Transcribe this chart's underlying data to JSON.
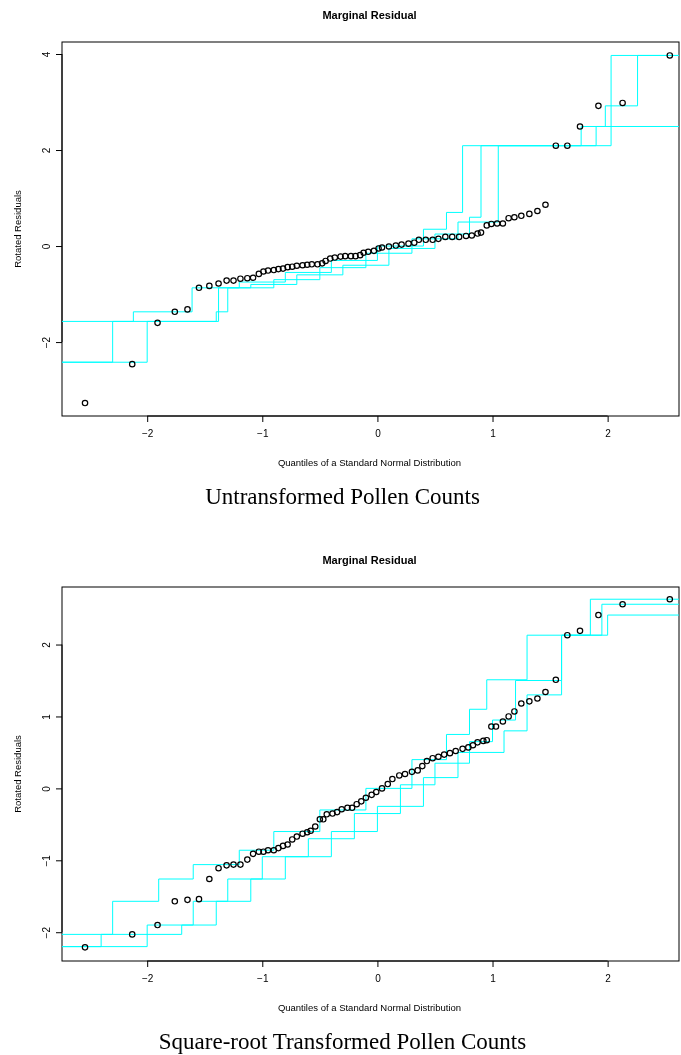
{
  "chart_data": [
    {
      "type": "scatter",
      "title": "Marginal Residual",
      "xlabel": "Quantiles of a Standard Normal Distribution",
      "ylabel": "Rotated Residuals",
      "annotations": [
        "Untransformed Pollen Counts"
      ],
      "xlim": [
        -2.74,
        2.62
      ],
      "xticks": [
        -2,
        -1,
        0,
        1,
        2
      ],
      "ylim": [
        -3.54,
        4.25
      ],
      "yticks": [
        -2,
        0,
        2,
        4
      ],
      "series": [
        {
          "type": "step",
          "color": "#00ffff",
          "x": [
            -2.74,
            -2.12,
            -1.61,
            -1.2,
            -0.8,
            -0.4,
            0,
            0.4,
            0.6,
            0.74,
            2.03,
            2.62
          ],
          "values": [
            -1.57,
            -1.37,
            -0.87,
            -0.75,
            -0.55,
            -0.3,
            0.0,
            0.35,
            0.7,
            2.09,
            3.97,
            3.97
          ]
        },
        {
          "type": "step",
          "color": "#00ffff",
          "x": [
            -2.74,
            -2.0,
            -1.38,
            -1.1,
            -0.7,
            -0.3,
            0.1,
            0.5,
            0.8,
            0.9,
            1.77,
            1.98,
            2.26,
            2.62
          ],
          "values": [
            -2.42,
            -1.57,
            -0.87,
            -0.8,
            -0.6,
            -0.4,
            -0.05,
            0.25,
            0.6,
            2.09,
            2.49,
            2.92,
            3.97,
            3.97
          ]
        },
        {
          "type": "step",
          "color": "#00ffff",
          "x": [
            -2.74,
            -2.3,
            -1.4,
            -1.3,
            -0.9,
            -0.5,
            -0.1,
            0.3,
            0.7,
            1.05,
            1.9,
            2.62
          ],
          "values": [
            -2.42,
            -1.57,
            -1.37,
            -0.87,
            -0.7,
            -0.45,
            -0.15,
            0.15,
            0.5,
            2.09,
            2.49,
            2.49
          ]
        },
        {
          "type": "scatter",
          "marker": "circle",
          "color": "#000000",
          "x": [
            -2.54,
            -2.13,
            -1.91,
            -1.76,
            -1.65,
            -1.55,
            -1.46,
            -1.38,
            -1.31,
            -1.25,
            -1.19,
            -1.13,
            -1.08,
            -1.03,
            -0.99,
            -0.95,
            -0.9,
            -0.86,
            -0.82,
            -0.78,
            -0.74,
            -0.7,
            -0.65,
            -0.61,
            -0.57,
            -0.52,
            -0.48,
            -0.45,
            -0.41,
            -0.37,
            -0.32,
            -0.28,
            -0.23,
            -0.19,
            -0.15,
            -0.12,
            -0.08,
            -0.03,
            0.01,
            0.04,
            0.1,
            0.16,
            0.21,
            0.27,
            0.32,
            0.36,
            0.42,
            0.48,
            0.53,
            0.59,
            0.65,
            0.71,
            0.77,
            0.82,
            0.87,
            0.9,
            0.95,
            0.99,
            1.04,
            1.09,
            1.14,
            1.19,
            1.25,
            1.32,
            1.39,
            1.46,
            1.55,
            1.65,
            1.76,
            1.92,
            2.13,
            2.54
          ],
          "values": [
            -3.27,
            -2.46,
            -1.6,
            -1.37,
            -1.32,
            -0.87,
            -0.83,
            -0.78,
            -0.72,
            -0.72,
            -0.68,
            -0.67,
            -0.66,
            -0.58,
            -0.53,
            -0.51,
            -0.5,
            -0.48,
            -0.47,
            -0.44,
            -0.43,
            -0.41,
            -0.4,
            -0.39,
            -0.38,
            -0.38,
            -0.36,
            -0.31,
            -0.26,
            -0.24,
            -0.22,
            -0.21,
            -0.21,
            -0.21,
            -0.19,
            -0.14,
            -0.12,
            -0.1,
            -0.05,
            -0.03,
            -0.01,
            0.01,
            0.03,
            0.05,
            0.07,
            0.13,
            0.13,
            0.13,
            0.15,
            0.19,
            0.19,
            0.19,
            0.21,
            0.22,
            0.26,
            0.28,
            0.43,
            0.46,
            0.47,
            0.47,
            0.58,
            0.6,
            0.63,
            0.67,
            0.73,
            0.86,
            2.09,
            2.09,
            2.49,
            2.92,
            2.98,
            3.97
          ]
        }
      ]
    },
    {
      "type": "scatter",
      "title": "Marginal Residual",
      "xlabel": "Quantiles of a Standard Normal Distribution",
      "ylabel": "Rotated Residuals",
      "annotations": [
        "Square-root Transformed Pollen Counts"
      ],
      "xlim": [
        -2.74,
        2.62
      ],
      "xticks": [
        -2,
        -1,
        0,
        1,
        2
      ],
      "ylim": [
        -2.4,
        2.8
      ],
      "yticks": [
        -2,
        -1,
        0,
        1,
        2
      ],
      "series": [
        {
          "type": "step",
          "color": "#00ffff",
          "x": [
            -2.74,
            -2.3,
            -1.9,
            -1.6,
            -1.2,
            -0.9,
            -0.5,
            -0.1,
            0.3,
            0.6,
            0.8,
            0.95,
            1.3,
            1.85,
            2.62
          ],
          "values": [
            -2.03,
            -1.57,
            -1.26,
            -1.06,
            -0.86,
            -0.6,
            -0.3,
            0.0,
            0.4,
            0.75,
            1.1,
            1.51,
            2.13,
            2.63,
            2.63
          ]
        },
        {
          "type": "step",
          "color": "#00ffff",
          "x": [
            -2.74,
            -2.0,
            -1.6,
            -1.3,
            -1.0,
            -0.6,
            -0.2,
            0.2,
            0.5,
            0.8,
            1.0,
            1.2,
            1.6,
            2.0,
            2.62
          ],
          "values": [
            -2.2,
            -1.9,
            -1.57,
            -1.26,
            -0.95,
            -0.7,
            -0.35,
            0.05,
            0.35,
            0.65,
            0.95,
            1.5,
            2.13,
            2.41,
            2.41
          ]
        },
        {
          "type": "step",
          "color": "#00ffff",
          "x": [
            -2.74,
            -2.4,
            -1.7,
            -1.4,
            -1.1,
            -0.8,
            -0.4,
            0,
            0.4,
            0.7,
            1.1,
            1.3,
            1.6,
            1.95,
            2.62
          ],
          "values": [
            -2.2,
            -2.03,
            -1.9,
            -1.57,
            -1.26,
            -0.95,
            -0.6,
            -0.25,
            0.15,
            0.5,
            0.8,
            1.3,
            2.13,
            2.56,
            2.56
          ]
        },
        {
          "type": "scatter",
          "marker": "circle",
          "color": "#000000",
          "x": [
            -2.54,
            -2.13,
            -1.91,
            -1.76,
            -1.65,
            -1.55,
            -1.46,
            -1.38,
            -1.31,
            -1.25,
            -1.19,
            -1.13,
            -1.08,
            -1.03,
            -0.99,
            -0.95,
            -0.9,
            -0.86,
            -0.82,
            -0.78,
            -0.74,
            -0.7,
            -0.65,
            -0.61,
            -0.58,
            -0.54,
            -0.5,
            -0.47,
            -0.44,
            -0.39,
            -0.35,
            -0.31,
            -0.26,
            -0.22,
            -0.18,
            -0.14,
            -0.1,
            -0.05,
            -0.01,
            0.04,
            0.09,
            0.13,
            0.19,
            0.24,
            0.3,
            0.35,
            0.39,
            0.43,
            0.48,
            0.53,
            0.58,
            0.63,
            0.68,
            0.74,
            0.79,
            0.83,
            0.87,
            0.92,
            0.95,
            0.99,
            1.03,
            1.09,
            1.14,
            1.19,
            1.25,
            1.32,
            1.39,
            1.46,
            1.55,
            1.65,
            1.76,
            1.92,
            2.13,
            2.54
          ],
          "values": [
            -2.21,
            -2.03,
            -1.9,
            -1.57,
            -1.55,
            -1.54,
            -1.26,
            -1.11,
            -1.07,
            -1.06,
            -1.06,
            -0.99,
            -0.91,
            -0.88,
            -0.88,
            -0.86,
            -0.86,
            -0.83,
            -0.8,
            -0.78,
            -0.71,
            -0.67,
            -0.63,
            -0.61,
            -0.59,
            -0.53,
            -0.43,
            -0.43,
            -0.36,
            -0.35,
            -0.33,
            -0.29,
            -0.27,
            -0.27,
            -0.22,
            -0.18,
            -0.13,
            -0.09,
            -0.05,
            0.0,
            0.06,
            0.13,
            0.18,
            0.2,
            0.23,
            0.25,
            0.31,
            0.38,
            0.42,
            0.44,
            0.47,
            0.49,
            0.52,
            0.55,
            0.57,
            0.6,
            0.64,
            0.66,
            0.67,
            0.86,
            0.86,
            0.93,
            1.0,
            1.07,
            1.18,
            1.21,
            1.25,
            1.34,
            1.51,
            2.13,
            2.19,
            2.41,
            2.56,
            2.63
          ]
        }
      ]
    }
  ]
}
